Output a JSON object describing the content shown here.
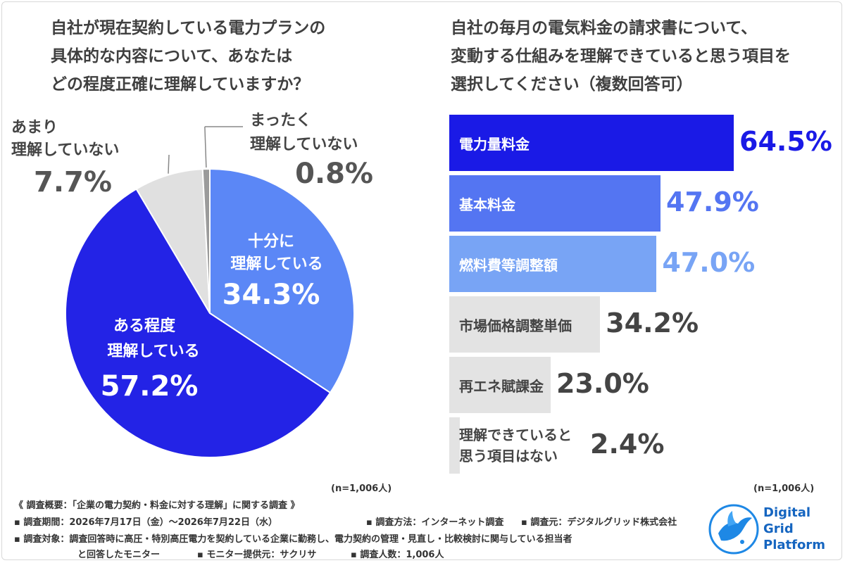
{
  "pie": {
    "title_lines": [
      "自社が現在契約している電力プランの",
      "具体的な内容について、あなたは",
      "どの程度正確に理解していますか？"
    ],
    "n_note": "(n=1,006人)"
  },
  "bar": {
    "title_lines": [
      "自社の毎月の電気料金の請求書について、",
      "変動する仕組みを理解できていると思う項目を",
      "選択してください（複数回答可）"
    ],
    "n_note": "(n=1,006人)"
  },
  "chart_data": [
    {
      "type": "pie",
      "slices": [
        {
          "label_lines": [
            "十分に",
            "理解している"
          ],
          "value": 34.3,
          "value_text": "34.3%",
          "color": "#5b87f6"
        },
        {
          "label_lines": [
            "ある程度",
            "理解している"
          ],
          "value": 57.2,
          "value_text": "57.2%",
          "color": "#2323e6"
        },
        {
          "label_lines": [
            "あまり",
            "理解していない"
          ],
          "value": 7.7,
          "value_text": "7.7%",
          "color": "#e0e0e0"
        },
        {
          "label_lines": [
            "まったく",
            "理解していない"
          ],
          "value": 0.8,
          "value_text": "0.8%",
          "color": "#9b9b9b"
        }
      ]
    },
    {
      "type": "bar",
      "orientation": "horizontal",
      "xlim": [
        0,
        64.5
      ],
      "categories": [
        "電力量料金",
        "基本料金",
        "燃料費等調整額",
        "市場価格調整単価",
        "再エネ賦課金",
        "理解できていると 思う項目はない"
      ],
      "values": [
        64.5,
        47.9,
        47.0,
        34.2,
        23.0,
        2.4
      ],
      "value_texts": [
        "64.5%",
        "47.9%",
        "47.0%",
        "34.2%",
        "23.0%",
        "2.4%"
      ],
      "bar_colors": [
        "#1a1ae6",
        "#5475f2",
        "#78a4f5",
        "#e3e3e3",
        "#e3e3e3",
        "#e3e3e3"
      ],
      "label_colors": [
        "#ffffff",
        "#ffffff",
        "#ffffff",
        "#444444",
        "#444444",
        "#444444"
      ],
      "value_colors": [
        "#1a1ae6",
        "#5475f2",
        "#78a4f5",
        "#444444",
        "#444444",
        "#444444"
      ]
    }
  ],
  "footer": {
    "line1": "《 調査概要：「企業の電力契約・料金に対する理解」に関する調査 》",
    "period": "▪ 調査期間：2026年7月17日（金）〜2026年7月22日（水）",
    "method": "▪ 調査方法：インターネット調査",
    "source": "▪ 調査元：デジタルグリッド株式会社",
    "target": "▪ 調査対象：調査回答時に高圧・特別高圧電力を契約している企業に勤務し、電力契約の管理・見直し・比較検討に関与している担当者",
    "target2": "と回答したモニター",
    "provider": "▪ モニター提供元：サクリサ",
    "count": "▪ 調査人数：1,006人"
  },
  "logo": {
    "lines": [
      "Digital",
      "Grid",
      "Platform"
    ],
    "color": "#1565c0"
  }
}
